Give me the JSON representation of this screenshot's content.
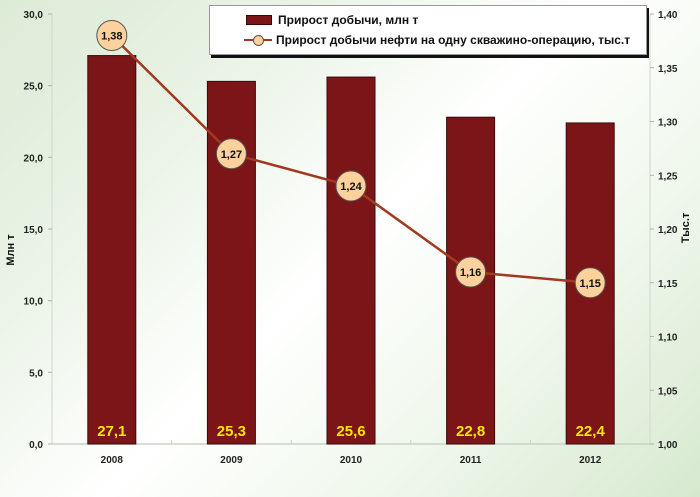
{
  "chart_data": {
    "type": "bar+line",
    "title": "",
    "categories": [
      "2008",
      "2009",
      "2010",
      "2011",
      "2012"
    ],
    "series": [
      {
        "name": "Прирост добычи, млн т",
        "type": "bar",
        "axis": "left",
        "color": "#7b1517",
        "values": [
          27.1,
          25.3,
          25.6,
          22.8,
          22.4
        ],
        "labels": [
          "27,1",
          "25,3",
          "25,6",
          "22,8",
          "22,4"
        ]
      },
      {
        "name": "Прирост добычи нефти на одну скважино-операцию, тыс.т",
        "type": "line",
        "axis": "right",
        "color": "#a0391f",
        "marker_color": "#fcd19c",
        "values": [
          1.38,
          1.27,
          1.24,
          1.16,
          1.15
        ],
        "labels": [
          "1,38",
          "1,27",
          "1,24",
          "1,16",
          "1,15"
        ]
      }
    ],
    "xlabel": "",
    "ylabel": "Млн т",
    "y2label": "Тыс.т",
    "ylim": [
      0,
      30
    ],
    "y2lim": [
      1.0,
      1.4
    ],
    "yticks": [
      "0,0",
      "5,0",
      "10,0",
      "15,0",
      "20,0",
      "25,0",
      "30,0"
    ],
    "y2ticks": [
      "1,00",
      "1,05",
      "1,10",
      "1,15",
      "1,20",
      "1,25",
      "1,30",
      "1,35",
      "1,40"
    ],
    "grid": false,
    "legend_position": "top-right"
  },
  "legend": {
    "bar_label": "Прирост добычи, млн т",
    "line_label": "Прирост добычи нефти на одну скважино-операцию, тыс.т"
  },
  "axes": {
    "left_title": "Млн т",
    "right_title": "Тыс.т"
  }
}
